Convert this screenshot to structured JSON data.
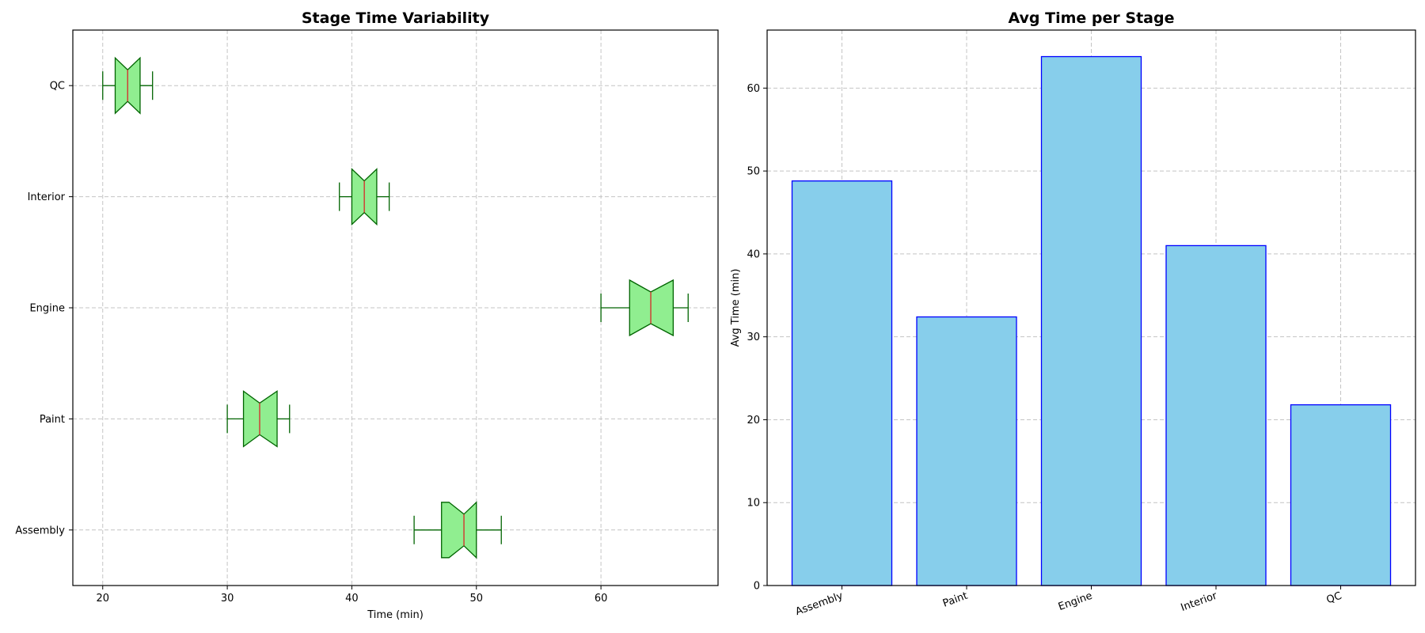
{
  "chart_data": [
    {
      "type": "boxplot",
      "orientation": "horizontal",
      "title": "Stage Time Variability",
      "xlabel": "Time (min)",
      "ylabel": "",
      "xlim": [
        17.6,
        69.4
      ],
      "xticks": [
        20,
        30,
        40,
        50,
        60
      ],
      "grid": true,
      "notched": true,
      "colors": {
        "box_fill": "#90ee90",
        "box_edge": "#006400",
        "median": "#d62728"
      },
      "categories": [
        "Assembly",
        "Paint",
        "Engine",
        "Interior",
        "QC"
      ],
      "boxes": [
        {
          "label": "Assembly",
          "whisker_low": 45,
          "q1": 47.2,
          "median": 49.0,
          "q3": 50.0,
          "whisker_high": 52,
          "notch_low": 47.8,
          "notch_high": 50.0
        },
        {
          "label": "Paint",
          "whisker_low": 30,
          "q1": 31.3,
          "median": 32.6,
          "q3": 34.0,
          "whisker_high": 35,
          "notch_low": 31.3,
          "notch_high": 34.0
        },
        {
          "label": "Engine",
          "whisker_low": 60,
          "q1": 62.3,
          "median": 64.0,
          "q3": 65.8,
          "whisker_high": 67,
          "notch_low": 62.3,
          "notch_high": 65.8
        },
        {
          "label": "Interior",
          "whisker_low": 39,
          "q1": 40.0,
          "median": 41.0,
          "q3": 42.0,
          "whisker_high": 43,
          "notch_low": 40.0,
          "notch_high": 42.0
        },
        {
          "label": "QC",
          "whisker_low": 20,
          "q1": 21.0,
          "median": 22.0,
          "q3": 23.0,
          "whisker_high": 24,
          "notch_low": 21.0,
          "notch_high": 23.0
        }
      ]
    },
    {
      "type": "bar",
      "title": "Avg Time per Stage",
      "xlabel": "",
      "ylabel": "Avg Time (min)",
      "ylim": [
        0,
        67
      ],
      "yticks": [
        0,
        10,
        20,
        30,
        40,
        50,
        60
      ],
      "grid": true,
      "colors": {
        "bar_fill": "#87ceeb",
        "bar_edge": "#0000ff"
      },
      "categories": [
        "Assembly",
        "Paint",
        "Engine",
        "Interior",
        "QC"
      ],
      "values": [
        48.8,
        32.4,
        63.8,
        41.0,
        21.8
      ]
    }
  ]
}
